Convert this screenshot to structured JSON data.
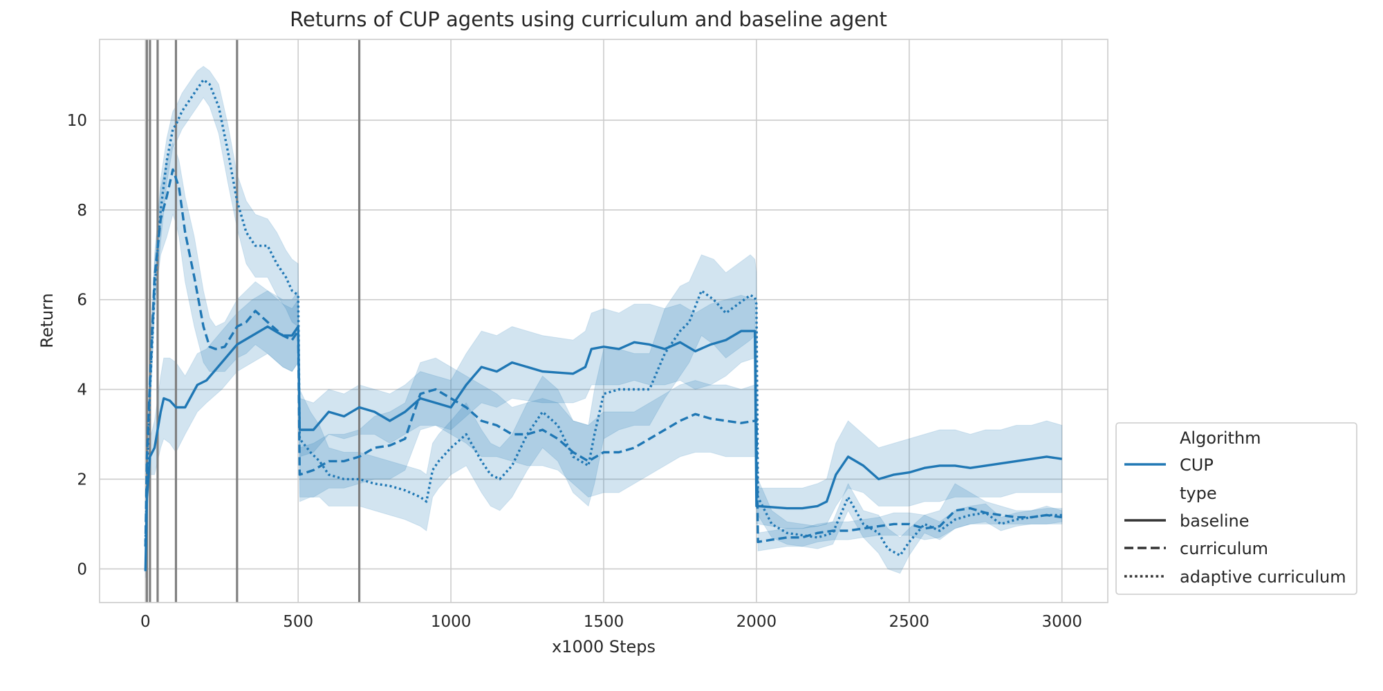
{
  "chart_data": {
    "type": "line",
    "title": "Returns of CUP agents using curriculum and baseline agent",
    "xlabel": "x1000 Steps",
    "ylabel": "Return",
    "xlim": [
      -150,
      3150
    ],
    "ylim": [
      -0.75,
      11.8
    ],
    "xticks": [
      0,
      500,
      1000,
      1500,
      2000,
      2500,
      3000
    ],
    "yticks": [
      0,
      2,
      4,
      6,
      8,
      10
    ],
    "grid": true,
    "color": "#1f77b4",
    "band_opacity": 0.2,
    "vlines": {
      "x": [
        5,
        15,
        40,
        100,
        300,
        700
      ],
      "color": "#808080"
    },
    "legend": {
      "placement": "lower-right-outside",
      "title_algorithm": "Algorithm",
      "algorithm": "CUP",
      "title_type": "type",
      "types": [
        "baseline",
        "curriculum",
        "adaptive curriculum"
      ]
    },
    "series": [
      {
        "name": "baseline",
        "style": "solid",
        "x": [
          0,
          5,
          15,
          30,
          50,
          60,
          80,
          100,
          130,
          170,
          200,
          250,
          300,
          350,
          400,
          450,
          480,
          500,
          505,
          550,
          600,
          650,
          700,
          750,
          800,
          850,
          900,
          950,
          1000,
          1050,
          1100,
          1150,
          1200,
          1300,
          1400,
          1440,
          1460,
          1500,
          1550,
          1600,
          1650,
          1700,
          1750,
          1800,
          1850,
          1900,
          1950,
          1995,
          2000,
          2005,
          2100,
          2150,
          2200,
          2230,
          2260,
          2300,
          2350,
          2400,
          2450,
          2500,
          2550,
          2600,
          2650,
          2700,
          2750,
          2800,
          2850,
          2900,
          2950,
          3000
        ],
        "y": [
          -0.05,
          1.6,
          2.5,
          2.7,
          3.5,
          3.8,
          3.75,
          3.6,
          3.6,
          4.1,
          4.2,
          4.6,
          5.0,
          5.2,
          5.4,
          5.2,
          5.2,
          5.4,
          3.1,
          3.1,
          3.5,
          3.4,
          3.6,
          3.5,
          3.3,
          3.5,
          3.8,
          3.7,
          3.6,
          4.1,
          4.5,
          4.4,
          4.6,
          4.4,
          4.35,
          4.5,
          4.9,
          4.95,
          4.9,
          5.05,
          5.0,
          4.9,
          5.05,
          4.85,
          5.0,
          5.1,
          5.3,
          5.3,
          1.4,
          1.4,
          1.35,
          1.35,
          1.4,
          1.5,
          2.1,
          2.5,
          2.3,
          2.0,
          2.1,
          2.15,
          2.25,
          2.3,
          2.3,
          2.25,
          2.3,
          2.35,
          2.4,
          2.45,
          2.5,
          2.45
        ],
        "lower": [
          -0.2,
          1.3,
          2.1,
          2.1,
          2.7,
          2.9,
          2.8,
          2.6,
          3.0,
          3.5,
          3.7,
          4.0,
          4.4,
          4.6,
          4.8,
          4.5,
          4.4,
          4.6,
          2.5,
          2.6,
          3.0,
          2.9,
          3.0,
          3.0,
          2.8,
          3.0,
          3.2,
          3.2,
          3.1,
          3.4,
          3.7,
          3.6,
          3.8,
          3.7,
          3.7,
          3.8,
          4.1,
          4.1,
          4.1,
          4.2,
          4.1,
          4.1,
          4.2,
          4.0,
          4.1,
          4.3,
          4.6,
          4.7,
          1.0,
          1.0,
          0.9,
          0.9,
          0.95,
          1.0,
          1.4,
          1.8,
          1.7,
          1.4,
          1.4,
          1.4,
          1.5,
          1.5,
          1.6,
          1.6,
          1.6,
          1.6,
          1.7,
          1.7,
          1.7,
          1.7
        ],
        "upper": [
          0.1,
          1.9,
          2.9,
          3.3,
          4.3,
          4.7,
          4.7,
          4.6,
          4.3,
          4.8,
          4.9,
          5.3,
          5.7,
          6.0,
          6.2,
          6.0,
          6.0,
          6.2,
          3.8,
          3.7,
          4.0,
          3.9,
          4.1,
          4.0,
          3.9,
          4.1,
          4.4,
          4.3,
          4.2,
          4.8,
          5.3,
          5.2,
          5.4,
          5.2,
          5.1,
          5.3,
          5.7,
          5.8,
          5.7,
          5.9,
          5.9,
          5.8,
          5.9,
          5.7,
          5.9,
          6.0,
          6.1,
          6.0,
          1.8,
          1.8,
          1.8,
          1.8,
          1.9,
          2.0,
          2.8,
          3.3,
          3.0,
          2.7,
          2.8,
          2.9,
          3.0,
          3.1,
          3.1,
          3.0,
          3.1,
          3.1,
          3.2,
          3.2,
          3.3,
          3.2
        ]
      },
      {
        "name": "curriculum",
        "style": "dashed",
        "x": [
          0,
          5,
          15,
          30,
          50,
          70,
          90,
          100,
          110,
          130,
          160,
          190,
          210,
          230,
          260,
          300,
          330,
          360,
          400,
          450,
          480,
          500,
          505,
          550,
          600,
          650,
          700,
          750,
          800,
          850,
          900,
          950,
          1000,
          1050,
          1100,
          1150,
          1200,
          1250,
          1300,
          1350,
          1400,
          1450,
          1500,
          1550,
          1600,
          1650,
          1700,
          1750,
          1800,
          1850,
          1900,
          1950,
          1995,
          2000,
          2005,
          2050,
          2100,
          2150,
          2200,
          2250,
          2300,
          2350,
          2400,
          2450,
          2500,
          2550,
          2600,
          2650,
          2700,
          2750,
          2800,
          2850,
          2900,
          2950,
          3000
        ],
        "y": [
          0.5,
          2.5,
          4.2,
          6.5,
          7.8,
          8.3,
          8.9,
          8.7,
          8.5,
          7.5,
          6.5,
          5.4,
          4.95,
          4.9,
          4.95,
          5.4,
          5.5,
          5.75,
          5.5,
          5.2,
          5.1,
          5.3,
          2.1,
          2.2,
          2.4,
          2.4,
          2.5,
          2.7,
          2.75,
          2.9,
          3.9,
          4.0,
          3.8,
          3.6,
          3.3,
          3.2,
          3.0,
          3.0,
          3.1,
          2.9,
          2.6,
          2.4,
          2.6,
          2.6,
          2.7,
          2.9,
          3.1,
          3.3,
          3.45,
          3.35,
          3.3,
          3.25,
          3.3,
          3.35,
          0.6,
          0.65,
          0.7,
          0.7,
          0.8,
          0.85,
          0.85,
          0.9,
          0.95,
          1.0,
          1.0,
          0.9,
          0.95,
          1.3,
          1.35,
          1.25,
          1.2,
          1.15,
          1.15,
          1.2,
          1.15
        ],
        "lower": [
          0.2,
          2.0,
          3.6,
          5.9,
          7.0,
          7.4,
          7.9,
          7.7,
          7.4,
          6.4,
          5.4,
          4.6,
          4.4,
          4.4,
          4.4,
          4.7,
          4.8,
          5.0,
          4.8,
          4.5,
          4.4,
          4.6,
          1.6,
          1.6,
          1.8,
          1.8,
          1.9,
          2.0,
          2.0,
          2.2,
          3.1,
          3.2,
          3.0,
          2.8,
          2.5,
          2.5,
          2.4,
          2.3,
          2.3,
          2.2,
          1.9,
          1.6,
          1.7,
          1.7,
          1.9,
          2.1,
          2.3,
          2.5,
          2.6,
          2.6,
          2.5,
          2.5,
          2.5,
          2.6,
          0.4,
          0.45,
          0.5,
          0.5,
          0.6,
          0.65,
          0.65,
          0.7,
          0.75,
          0.75,
          0.75,
          0.65,
          0.7,
          0.9,
          1.0,
          1.0,
          1.0,
          1.0,
          1.0,
          1.0,
          1.0
        ],
        "upper": [
          0.8,
          3.0,
          4.8,
          7.0,
          8.5,
          9.1,
          9.5,
          9.3,
          9.1,
          8.3,
          7.4,
          6.2,
          5.6,
          5.4,
          5.5,
          6.0,
          6.2,
          6.4,
          6.2,
          5.9,
          5.8,
          6.0,
          2.7,
          2.8,
          3.0,
          3.0,
          3.1,
          3.4,
          3.5,
          3.7,
          4.6,
          4.7,
          4.5,
          4.3,
          4.1,
          3.9,
          3.6,
          3.7,
          3.8,
          3.7,
          3.3,
          3.2,
          3.5,
          3.5,
          3.5,
          3.7,
          3.9,
          4.1,
          4.2,
          4.1,
          4.1,
          4.0,
          4.1,
          4.1,
          0.8,
          0.85,
          0.9,
          0.9,
          1.0,
          1.05,
          1.05,
          1.1,
          1.15,
          1.25,
          1.25,
          1.2,
          1.3,
          1.9,
          1.7,
          1.5,
          1.4,
          1.3,
          1.3,
          1.4,
          1.3
        ]
      },
      {
        "name": "adaptive curriculum",
        "style": "dotted",
        "x": [
          0,
          5,
          15,
          30,
          50,
          70,
          90,
          100,
          120,
          150,
          170,
          190,
          210,
          240,
          270,
          300,
          330,
          360,
          400,
          430,
          460,
          480,
          500,
          505,
          540,
          570,
          600,
          650,
          700,
          750,
          800,
          850,
          900,
          920,
          940,
          960,
          1000,
          1050,
          1100,
          1130,
          1160,
          1200,
          1250,
          1300,
          1350,
          1400,
          1450,
          1470,
          1500,
          1550,
          1600,
          1650,
          1700,
          1750,
          1780,
          1820,
          1860,
          1900,
          1940,
          1980,
          1995,
          2000,
          2005,
          2050,
          2100,
          2150,
          2200,
          2250,
          2300,
          2350,
          2400,
          2430,
          2470,
          2500,
          2550,
          2600,
          2650,
          2700,
          2750,
          2800,
          2850,
          2900,
          2950,
          3000
        ],
        "y": [
          0.5,
          2.0,
          4.0,
          6.2,
          8.0,
          9.1,
          9.8,
          9.9,
          10.2,
          10.5,
          10.7,
          10.9,
          10.8,
          10.3,
          9.3,
          8.2,
          7.5,
          7.2,
          7.2,
          6.8,
          6.5,
          6.2,
          6.1,
          2.9,
          2.6,
          2.4,
          2.1,
          2.0,
          2.0,
          1.9,
          1.85,
          1.75,
          1.6,
          1.5,
          2.2,
          2.4,
          2.7,
          3.0,
          2.4,
          2.1,
          2.0,
          2.3,
          3.0,
          3.5,
          3.2,
          2.5,
          2.3,
          3.0,
          3.9,
          4.0,
          4.0,
          4.0,
          4.8,
          5.3,
          5.5,
          6.2,
          6.0,
          5.7,
          5.9,
          6.1,
          6.05,
          5.9,
          1.6,
          1.0,
          0.8,
          0.75,
          0.7,
          0.8,
          1.6,
          1.0,
          0.8,
          0.45,
          0.3,
          0.6,
          1.0,
          0.85,
          1.1,
          1.2,
          1.25,
          1.0,
          1.1,
          1.15,
          1.2,
          1.2
        ],
        "lower": [
          0.2,
          1.5,
          3.4,
          5.6,
          7.3,
          8.6,
          9.4,
          9.5,
          9.8,
          10.1,
          10.3,
          10.5,
          10.3,
          9.7,
          8.6,
          7.6,
          6.8,
          6.5,
          6.5,
          6.1,
          5.8,
          5.5,
          5.4,
          1.5,
          1.6,
          1.6,
          1.4,
          1.4,
          1.4,
          1.3,
          1.2,
          1.1,
          0.95,
          0.85,
          1.6,
          1.8,
          2.1,
          2.3,
          1.7,
          1.4,
          1.3,
          1.6,
          2.2,
          2.7,
          2.4,
          1.7,
          1.4,
          1.9,
          2.9,
          3.1,
          3.2,
          3.2,
          3.8,
          4.3,
          4.6,
          5.2,
          5.0,
          4.7,
          4.9,
          5.1,
          5.2,
          5.2,
          1.2,
          0.7,
          0.55,
          0.5,
          0.45,
          0.55,
          1.3,
          0.7,
          0.35,
          0.0,
          -0.1,
          0.3,
          0.8,
          0.65,
          0.9,
          1.0,
          1.05,
          0.85,
          0.95,
          1.0,
          1.0,
          1.05
        ],
        "upper": [
          0.8,
          2.5,
          4.6,
          6.8,
          8.7,
          9.6,
          10.2,
          10.3,
          10.6,
          10.9,
          11.1,
          11.2,
          11.1,
          10.8,
          9.9,
          8.8,
          8.2,
          7.9,
          7.8,
          7.5,
          7.1,
          6.9,
          6.8,
          4.0,
          3.5,
          3.2,
          2.7,
          2.6,
          2.6,
          2.5,
          2.4,
          2.3,
          2.2,
          2.1,
          2.8,
          3.0,
          3.3,
          3.7,
          3.1,
          2.8,
          2.7,
          3.0,
          3.7,
          4.3,
          4.0,
          3.3,
          3.2,
          4.0,
          4.9,
          4.9,
          4.8,
          4.8,
          5.8,
          6.3,
          6.4,
          7.0,
          6.9,
          6.6,
          6.8,
          7.0,
          6.9,
          6.6,
          2.0,
          1.3,
          1.05,
          1.0,
          0.95,
          1.05,
          1.9,
          1.3,
          1.2,
          0.9,
          0.7,
          0.9,
          1.2,
          1.05,
          1.3,
          1.4,
          1.45,
          1.15,
          1.25,
          1.3,
          1.35,
          1.35
        ]
      }
    ]
  }
}
